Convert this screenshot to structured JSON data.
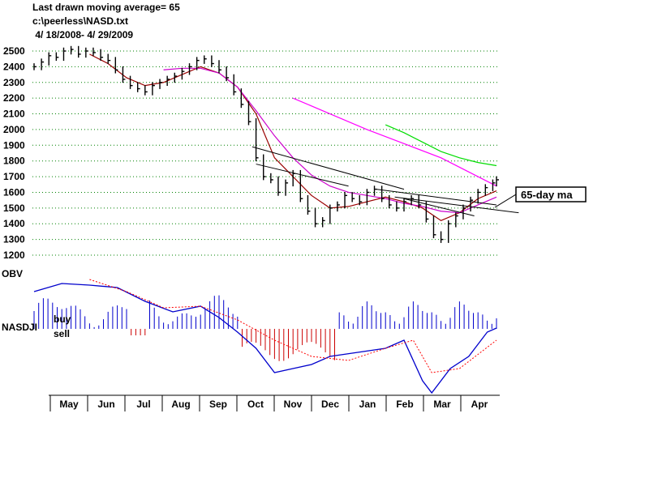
{
  "header": {
    "line1": "Last drawn moving average= 65",
    "line2": "c:\\peerless\\NASD.txt",
    "line3": " 4/ 18/2008- 4/ 29/2009"
  },
  "labels": {
    "obv": "OBV",
    "nasdji": "NASDJI",
    "buy": "buy",
    "sell": "sell",
    "ma_callout": "65-day ma"
  },
  "colors": {
    "price": "#000000",
    "ma21": "#990000",
    "ma50": "#cc00cc",
    "ma200": "#ff00ff",
    "ma_long": "#00dd00",
    "obv": "#0000cc",
    "buy_bars": "#0000cc",
    "sell_bars": "#cc0000",
    "ma_dotted": "#ff0000",
    "grid": "#008000"
  },
  "chart_data": {
    "type": "line",
    "xlabel": "",
    "ylabel": "",
    "ylim": [
      1200,
      2500
    ],
    "yticks": [
      1200,
      1300,
      1400,
      1500,
      1600,
      1700,
      1800,
      1900,
      2000,
      2100,
      2200,
      2300,
      2400,
      2500
    ],
    "months": [
      "May",
      "Jun",
      "Jul",
      "Aug",
      "Sep",
      "Oct",
      "Nov",
      "Dec",
      "Jan",
      "Feb",
      "Mar",
      "Apr"
    ],
    "grid": "dotted horizontal",
    "series": [
      {
        "key": "price",
        "style": "ohlc-bars",
        "x": [
          0,
          4,
          8,
          12,
          16,
          20,
          24,
          28,
          32,
          36,
          40,
          44,
          48,
          52,
          56,
          60,
          64,
          68,
          72,
          76,
          80,
          84,
          88,
          92,
          96,
          100,
          104,
          108,
          112,
          116,
          120,
          124,
          128,
          132,
          136,
          140,
          144,
          148,
          152,
          156,
          160,
          164,
          168,
          172,
          176,
          180,
          184,
          188,
          192,
          196,
          200,
          204,
          208,
          212,
          216,
          220,
          224,
          228,
          232,
          236,
          240,
          244,
          248,
          250
        ],
        "values": [
          2400,
          2430,
          2470,
          2460,
          2500,
          2510,
          2480,
          2500,
          2490,
          2460,
          2440,
          2380,
          2320,
          2280,
          2260,
          2240,
          2280,
          2300,
          2320,
          2340,
          2370,
          2400,
          2440,
          2450,
          2420,
          2380,
          2330,
          2240,
          2160,
          2050,
          1820,
          1700,
          1680,
          1600,
          1660,
          1720,
          1560,
          1480,
          1400,
          1420,
          1500,
          1520,
          1580,
          1560,
          1540,
          1600,
          1620,
          1560,
          1520,
          1500,
          1540,
          1560,
          1520,
          1430,
          1330,
          1300,
          1400,
          1450,
          1500,
          1550,
          1600,
          1630,
          1660,
          1680
        ]
      },
      {
        "key": "ma21",
        "x": [
          30,
          40,
          50,
          60,
          70,
          80,
          90,
          100,
          110,
          120,
          130,
          140,
          150,
          160,
          170,
          180,
          190,
          200,
          210,
          220,
          230,
          240,
          250
        ],
        "values": [
          2480,
          2420,
          2330,
          2280,
          2300,
          2350,
          2400,
          2360,
          2270,
          2100,
          1820,
          1700,
          1580,
          1500,
          1510,
          1540,
          1570,
          1540,
          1500,
          1420,
          1470,
          1560,
          1610
        ]
      },
      {
        "key": "ma50",
        "x": [
          70,
          80,
          90,
          100,
          110,
          120,
          130,
          140,
          150,
          160,
          170,
          180,
          190,
          200,
          210,
          220,
          230,
          240,
          250
        ],
        "values": [
          2380,
          2390,
          2390,
          2360,
          2270,
          2120,
          1960,
          1820,
          1710,
          1640,
          1600,
          1580,
          1560,
          1530,
          1510,
          1480,
          1470,
          1520,
          1570
        ]
      },
      {
        "key": "ma200",
        "x": [
          140,
          160,
          180,
          200,
          220,
          240,
          250
        ],
        "values": [
          2200,
          2100,
          2000,
          1910,
          1820,
          1700,
          1640
        ]
      },
      {
        "key": "ma_long",
        "x": [
          190,
          200,
          210,
          220,
          230,
          240,
          250
        ],
        "values": [
          2030,
          1980,
          1920,
          1860,
          1820,
          1790,
          1770
        ]
      }
    ],
    "trendlines": [
      {
        "x": [
          118,
          200
        ],
        "values": [
          1890,
          1620
        ]
      },
      {
        "x": [
          120,
          170
        ],
        "values": [
          1780,
          1640
        ]
      },
      {
        "x": [
          185,
          250
        ],
        "values": [
          1620,
          1520
        ]
      },
      {
        "x": [
          195,
          262
        ],
        "values": [
          1570,
          1470
        ]
      },
      {
        "x": [
          200,
          238
        ],
        "values": [
          1560,
          1450
        ]
      }
    ]
  }
}
